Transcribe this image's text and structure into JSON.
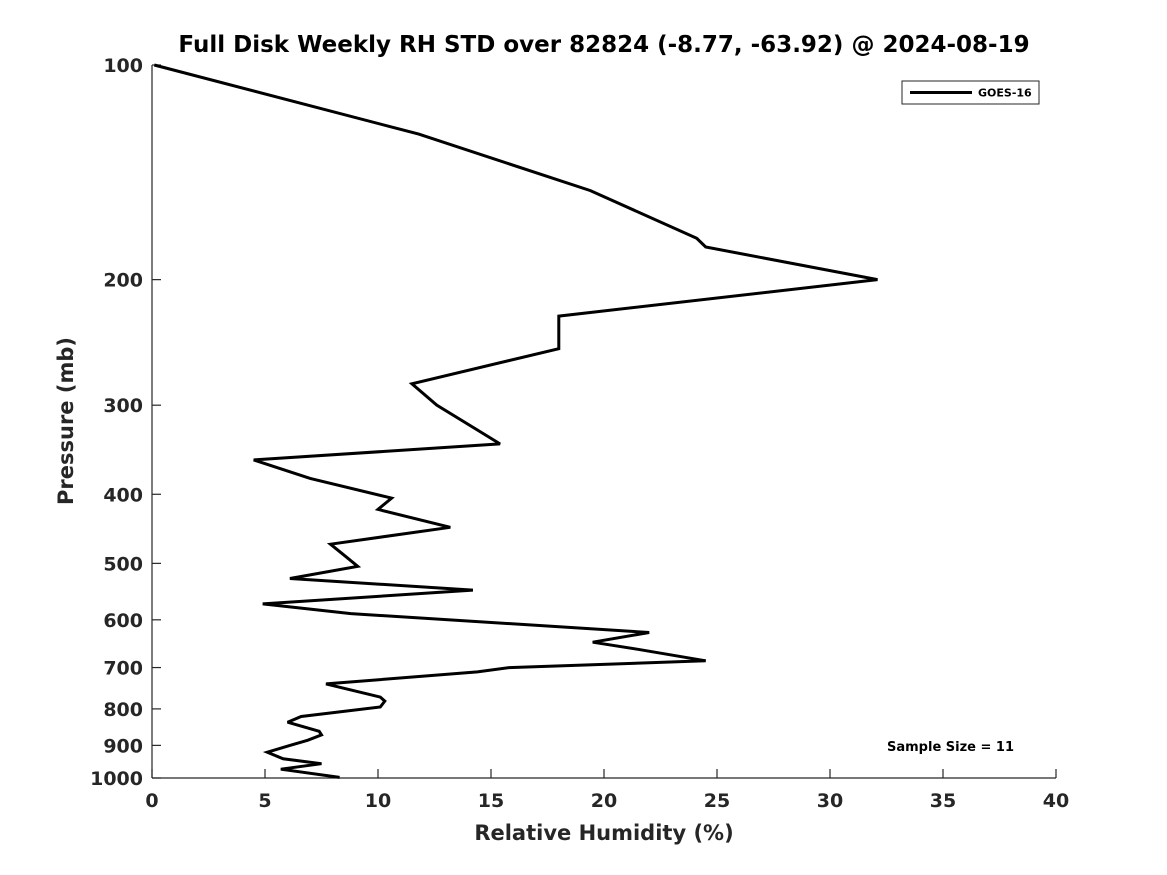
{
  "chart_data": {
    "type": "line",
    "title": "Full Disk Weekly RH STD over 82824 (-8.77, -63.92) @ 2024-08-19",
    "xlabel": "Relative Humidity (%)",
    "ylabel": "Pressure (mb)",
    "xlim": [
      0,
      40
    ],
    "ylim": [
      100,
      1000
    ],
    "y_scale": "log",
    "y_reversed": true,
    "grid": false,
    "legend_position": "top-right",
    "x_ticks": [
      0,
      5,
      10,
      15,
      20,
      25,
      30,
      35,
      40
    ],
    "y_ticks": [
      100,
      200,
      300,
      400,
      500,
      600,
      700,
      800,
      900,
      1000
    ],
    "series": [
      {
        "name": "GOES-16",
        "color": "#000000",
        "points": [
          [
            0.1,
            100
          ],
          [
            11.8,
            125
          ],
          [
            19.4,
            150
          ],
          [
            24.1,
            175
          ],
          [
            24.5,
            180
          ],
          [
            32.1,
            200
          ],
          [
            18.0,
            225
          ],
          [
            18.0,
            250
          ],
          [
            11.5,
            280
          ],
          [
            12.6,
            300
          ],
          [
            14.4,
            325
          ],
          [
            15.4,
            340
          ],
          [
            4.5,
            358
          ],
          [
            7.0,
            380
          ],
          [
            10.6,
            405
          ],
          [
            10.0,
            420
          ],
          [
            13.2,
            445
          ],
          [
            7.9,
            470
          ],
          [
            8.6,
            490
          ],
          [
            9.1,
            505
          ],
          [
            6.1,
            525
          ],
          [
            14.2,
            545
          ],
          [
            4.9,
            570
          ],
          [
            8.8,
            588
          ],
          [
            22.0,
            625
          ],
          [
            19.5,
            645
          ],
          [
            21.5,
            660
          ],
          [
            24.5,
            685
          ],
          [
            15.8,
            700
          ],
          [
            14.4,
            710
          ],
          [
            7.7,
            738
          ],
          [
            10.1,
            770
          ],
          [
            10.3,
            780
          ],
          [
            10.1,
            795
          ],
          [
            6.6,
            820
          ],
          [
            6.0,
            835
          ],
          [
            7.4,
            860
          ],
          [
            7.5,
            870
          ],
          [
            6.9,
            885
          ],
          [
            6.1,
            900
          ],
          [
            5.1,
            920
          ],
          [
            5.8,
            940
          ],
          [
            7.5,
            955
          ],
          [
            5.7,
            972
          ],
          [
            8.3,
            998
          ]
        ]
      }
    ],
    "annotations": [
      "Sample Size = 11"
    ]
  }
}
